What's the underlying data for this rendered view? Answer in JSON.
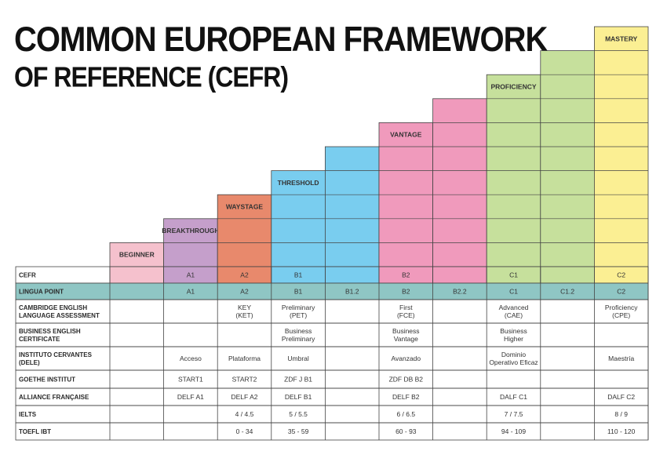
{
  "title": {
    "line1": "COMMON EUROPEAN FRAMEWORK",
    "line2": "OF REFERENCE (CEFR)"
  },
  "colors": {
    "beginner": "#f5c1cd",
    "breakthrough": "#c59fcb",
    "waystage": "#e8896c",
    "threshold": "#79cdef",
    "vantage": "#f09abc",
    "proficiency": "#c6e09c",
    "mastery": "#fbef93",
    "lingua_row": "#8fc6c4",
    "grid": "#444444"
  },
  "bands": [
    {
      "name": "BEGINNER",
      "color_key": "beginner"
    },
    {
      "name": "BREAKTHROUGH",
      "color_key": "breakthrough"
    },
    {
      "name": "WAYSTAGE",
      "color_key": "waystage"
    },
    {
      "name": "THRESHOLD",
      "color_key": "threshold"
    },
    {
      "name": "",
      "color_key": "threshold"
    },
    {
      "name": "VANTAGE",
      "color_key": "vantage"
    },
    {
      "name": "",
      "color_key": "vantage"
    },
    {
      "name": "PROFICIENCY",
      "color_key": "proficiency"
    },
    {
      "name": "",
      "color_key": "proficiency"
    },
    {
      "name": "MASTERY",
      "color_key": "mastery"
    }
  ],
  "rows": [
    {
      "label": [
        "CEFR"
      ],
      "cells": [
        [
          ""
        ],
        [
          "A1"
        ],
        [
          "A2"
        ],
        [
          "B1"
        ],
        [
          ""
        ],
        [
          "B2"
        ],
        [
          ""
        ],
        [
          "C1"
        ],
        [
          ""
        ],
        [
          "C2"
        ]
      ]
    },
    {
      "label": [
        "LINGUA POINT"
      ],
      "cells": [
        [
          ""
        ],
        [
          "A1"
        ],
        [
          "A2"
        ],
        [
          "B1"
        ],
        [
          "B1.2"
        ],
        [
          "B2"
        ],
        [
          "B2.2"
        ],
        [
          "C1"
        ],
        [
          "C1.2"
        ],
        [
          "C2"
        ]
      ]
    },
    {
      "label": [
        "CAMBRIDGE ENGLISH",
        "LANGUAGE ASSESSMENT"
      ],
      "cells": [
        [
          ""
        ],
        [
          ""
        ],
        [
          "KEY",
          "(KET)"
        ],
        [
          "Preliminary",
          "(PET)"
        ],
        [
          ""
        ],
        [
          "First",
          "(FCE)"
        ],
        [
          ""
        ],
        [
          "Advanced",
          "(CAE)"
        ],
        [
          ""
        ],
        [
          "Proficiency",
          "(CPE)"
        ]
      ]
    },
    {
      "label": [
        "BUSINESS ENGLISH",
        "CERTIFICATE"
      ],
      "cells": [
        [
          ""
        ],
        [
          ""
        ],
        [
          ""
        ],
        [
          "Business",
          "Preliminary"
        ],
        [
          ""
        ],
        [
          "Business",
          "Vantage"
        ],
        [
          ""
        ],
        [
          "Business",
          "Higher"
        ],
        [
          ""
        ],
        [
          ""
        ]
      ]
    },
    {
      "label": [
        "INSTITUTO CERVANTES",
        "(DELE)"
      ],
      "cells": [
        [
          ""
        ],
        [
          "Acceso"
        ],
        [
          "Plataforma"
        ],
        [
          "Umbral"
        ],
        [
          ""
        ],
        [
          "Avanzado"
        ],
        [
          ""
        ],
        [
          "Dominio",
          "Operativo Eficaz"
        ],
        [
          ""
        ],
        [
          "Maestría"
        ]
      ]
    },
    {
      "label": [
        "GOETHE INSTITUT"
      ],
      "cells": [
        [
          ""
        ],
        [
          "START1"
        ],
        [
          "START2"
        ],
        [
          "ZDF J B1"
        ],
        [
          ""
        ],
        [
          "ZDF DB B2"
        ],
        [
          ""
        ],
        [
          ""
        ],
        [
          ""
        ],
        [
          ""
        ]
      ]
    },
    {
      "label": [
        "ALLIANCE FRANÇAISE"
      ],
      "cells": [
        [
          ""
        ],
        [
          "DELF A1"
        ],
        [
          "DELF A2"
        ],
        [
          "DELF B1"
        ],
        [
          ""
        ],
        [
          "DELF B2"
        ],
        [
          ""
        ],
        [
          "DALF C1"
        ],
        [
          ""
        ],
        [
          "DALF C2"
        ]
      ]
    },
    {
      "label": [
        "IELTS"
      ],
      "cells": [
        [
          ""
        ],
        [
          ""
        ],
        [
          "4 / 4.5"
        ],
        [
          "5 / 5.5"
        ],
        [
          ""
        ],
        [
          "6 / 6.5"
        ],
        [
          ""
        ],
        [
          "7 / 7.5"
        ],
        [
          ""
        ],
        [
          "8 / 9"
        ]
      ]
    },
    {
      "label": [
        "TOEFL IBT"
      ],
      "cells": [
        [
          ""
        ],
        [
          ""
        ],
        [
          "0 - 34"
        ],
        [
          "35 - 59"
        ],
        [
          ""
        ],
        [
          "60 - 93"
        ],
        [
          ""
        ],
        [
          "94 - 109"
        ],
        [
          ""
        ],
        [
          "110 - 120"
        ]
      ]
    }
  ]
}
